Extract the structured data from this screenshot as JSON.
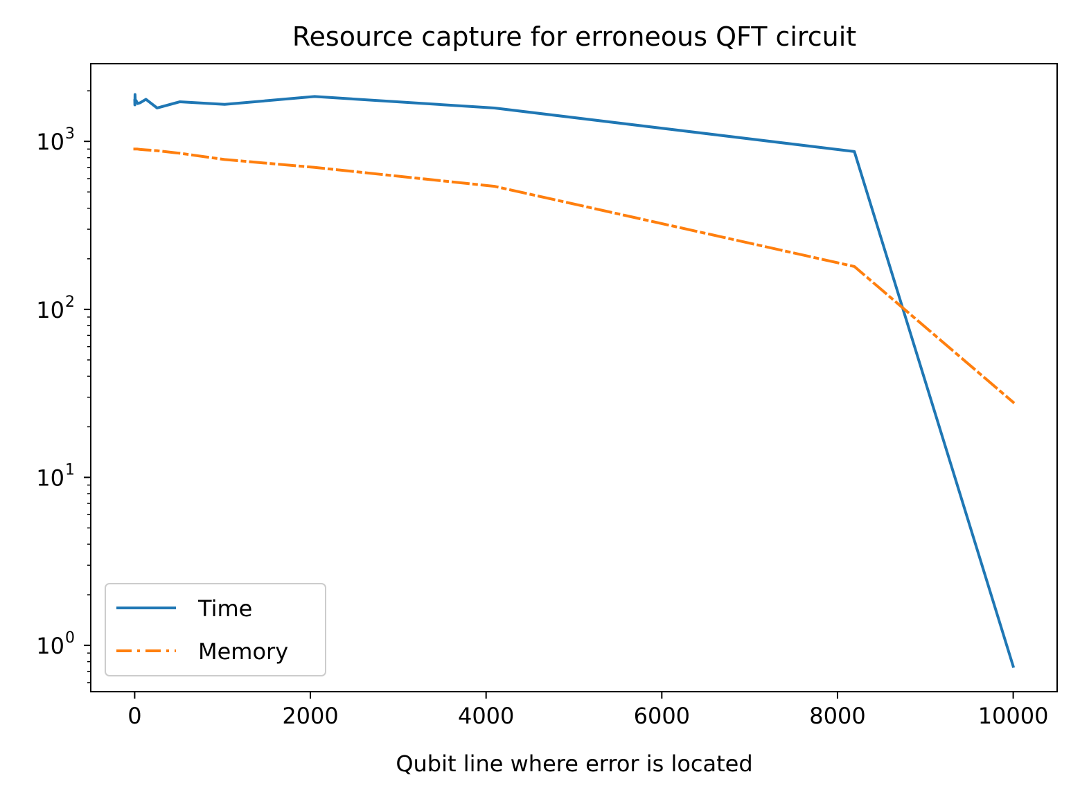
{
  "chart_data": {
    "type": "line",
    "title": "Resource capture for erroneous QFT circuit",
    "xlabel": "Qubit line where error is located",
    "ylabel": "",
    "xlim": [
      -500,
      10500
    ],
    "ylim": [
      0.53,
      2900
    ],
    "y_scale": "log",
    "grid": false,
    "legend_position": "lower-left",
    "x_ticks": [
      {
        "value": 0,
        "label": "0"
      },
      {
        "value": 2000,
        "label": "2000"
      },
      {
        "value": 4000,
        "label": "4000"
      },
      {
        "value": 6000,
        "label": "6000"
      },
      {
        "value": 8000,
        "label": "8000"
      },
      {
        "value": 10000,
        "label": "10000"
      }
    ],
    "y_ticks": [
      {
        "value": 1,
        "base": "10",
        "exp": "0"
      },
      {
        "value": 10,
        "base": "10",
        "exp": "1"
      },
      {
        "value": 100,
        "base": "10",
        "exp": "2"
      },
      {
        "value": 1000,
        "base": "10",
        "exp": "3"
      }
    ],
    "series": [
      {
        "name": "Time",
        "color": "#1f77b4",
        "dash": "solid",
        "x": [
          1,
          2,
          4,
          8,
          16,
          32,
          64,
          128,
          256,
          512,
          1024,
          2048,
          4096,
          8192,
          10000
        ],
        "y": [
          1750,
          1650,
          1900,
          1700,
          1750,
          1680,
          1700,
          1780,
          1580,
          1720,
          1660,
          1850,
          1580,
          870,
          0.75
        ]
      },
      {
        "name": "Memory",
        "color": "#ff7f0e",
        "dash": "dashdot",
        "x": [
          1,
          2,
          4,
          8,
          16,
          32,
          64,
          128,
          256,
          512,
          1024,
          2048,
          4096,
          8192,
          10000
        ],
        "y": [
          900,
          900,
          900,
          900,
          900,
          900,
          895,
          890,
          880,
          850,
          780,
          700,
          540,
          180,
          28
        ]
      }
    ]
  }
}
